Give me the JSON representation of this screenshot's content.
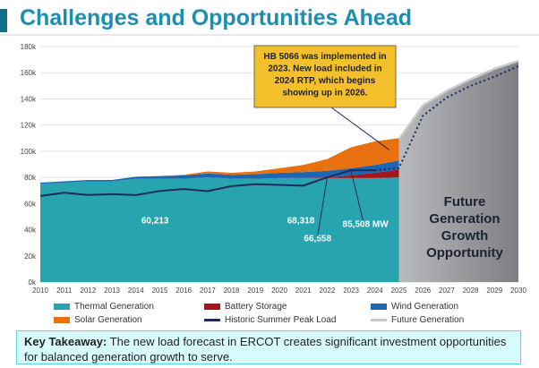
{
  "header": {
    "title": "Challenges and Opportunities Ahead"
  },
  "callout": {
    "text": "HB 5066 was implemented in 2023. New load included in 2024 RTP, which begins showing up in 2026."
  },
  "future_label": [
    "Future",
    "Generation",
    "Growth",
    "Opportunity"
  ],
  "takeaway": {
    "label": "Key Takeaway:",
    "text": "The new load forecast in ERCOT creates significant investment opportunities for balanced generation growth to serve."
  },
  "colors": {
    "thermal": "#28a3b0",
    "battery": "#a3151a",
    "wind": "#1b67b0",
    "solar": "#e8700f",
    "peak": "#1d2a5e",
    "future": "#c9c9cc",
    "future_fill": "#7d7e83",
    "callout": "#f3c02c"
  },
  "chart_data": {
    "type": "area",
    "x": [
      2010,
      2011,
      2012,
      2013,
      2014,
      2015,
      2016,
      2017,
      2018,
      2019,
      2020,
      2021,
      2022,
      2023,
      2024,
      2025,
      2026,
      2027,
      2028,
      2029,
      2030
    ],
    "x_ticks": [
      "2010",
      "2011",
      "2012",
      "2013",
      "2014",
      "2015",
      "2016",
      "2017",
      "2018",
      "2019",
      "2020",
      "2021",
      "2022",
      "2023",
      "2024",
      "2025",
      "2026",
      "2027",
      "2028",
      "2029",
      "2030"
    ],
    "y_ticks": [
      "0k",
      "20k",
      "40k",
      "60k",
      "80k",
      "100k",
      "120k",
      "140k",
      "160k",
      "180k"
    ],
    "ylim": [
      0,
      180000
    ],
    "grid": true,
    "legend_position": "bottom",
    "series": [
      {
        "name": "Thermal Generation",
        "key": "thermal",
        "x": [
          2010,
          2011,
          2012,
          2013,
          2014,
          2015,
          2016,
          2017,
          2018,
          2019,
          2020,
          2021,
          2022,
          2023,
          2024,
          2025
        ],
        "values": [
          75000,
          76000,
          77000,
          77000,
          79000,
          79000,
          79000,
          80000,
          79000,
          79000,
          79500,
          79500,
          79500,
          79500,
          79500,
          80000
        ]
      },
      {
        "name": "Battery Storage",
        "key": "battery",
        "x": [
          2010,
          2011,
          2012,
          2013,
          2014,
          2015,
          2016,
          2017,
          2018,
          2019,
          2020,
          2021,
          2022,
          2023,
          2024,
          2025
        ],
        "values": [
          0,
          0,
          0,
          0,
          0,
          0,
          0,
          0,
          0,
          0,
          0,
          0,
          500,
          2000,
          4000,
          6000
        ]
      },
      {
        "name": "Wind Generation",
        "key": "wind",
        "x": [
          2010,
          2011,
          2012,
          2013,
          2014,
          2015,
          2016,
          2017,
          2018,
          2019,
          2020,
          2021,
          2022,
          2023,
          2024,
          2025
        ],
        "values": [
          1000,
          1000,
          1000,
          1000,
          1500,
          2000,
          2500,
          3000,
          3000,
          3500,
          4000,
          4500,
          5000,
          5500,
          6000,
          7000
        ]
      },
      {
        "name": "Solar Generation",
        "key": "solar",
        "x": [
          2010,
          2011,
          2012,
          2013,
          2014,
          2015,
          2016,
          2017,
          2018,
          2019,
          2020,
          2021,
          2022,
          2023,
          2024,
          2025
        ],
        "values": [
          0,
          0,
          0,
          0,
          0,
          0,
          500,
          1500,
          1500,
          2000,
          3500,
          5500,
          9000,
          16000,
          18000,
          17000
        ]
      },
      {
        "name": "Historic Summer Peak Load",
        "key": "peak",
        "x": [
          2010,
          2011,
          2012,
          2013,
          2014,
          2015,
          2016,
          2017,
          2018,
          2019,
          2020,
          2021,
          2022,
          2023,
          2024
        ],
        "values": [
          65800,
          68300,
          66600,
          67200,
          66500,
          69600,
          71100,
          69500,
          73300,
          74800,
          74300,
          73700,
          80000,
          85500,
          85500
        ]
      },
      {
        "name": "Future Generation",
        "key": "future",
        "x": [
          2025,
          2026,
          2027,
          2028,
          2029,
          2030
        ],
        "values": [
          109000,
          135000,
          146000,
          155000,
          163000,
          169000
        ]
      }
    ],
    "future_peak": {
      "x": [
        2025,
        2026,
        2027,
        2028,
        2029,
        2030
      ],
      "values": [
        87000,
        127000,
        141000,
        150000,
        157000,
        165000
      ]
    },
    "annotations": [
      {
        "text": "60,213",
        "x": 2014.8,
        "y": 45000
      },
      {
        "text": "68,318",
        "x": 2020.9,
        "y": 45000
      },
      {
        "text": "66,558",
        "x": 2021.6,
        "y": 31000
      },
      {
        "text": "85,508 MW",
        "x": 2023.6,
        "y": 42000
      }
    ]
  },
  "legend": [
    {
      "label": "Thermal Generation",
      "key": "thermal",
      "kind": "box"
    },
    {
      "label": "Battery Storage",
      "key": "battery",
      "kind": "box"
    },
    {
      "label": "Wind Generation",
      "key": "wind",
      "kind": "box"
    },
    {
      "label": "Solar Generation",
      "key": "solar",
      "kind": "box"
    },
    {
      "label": "Historic Summer Peak Load",
      "key": "peak",
      "kind": "line"
    },
    {
      "label": "Future Generation",
      "key": "future",
      "kind": "line"
    }
  ]
}
